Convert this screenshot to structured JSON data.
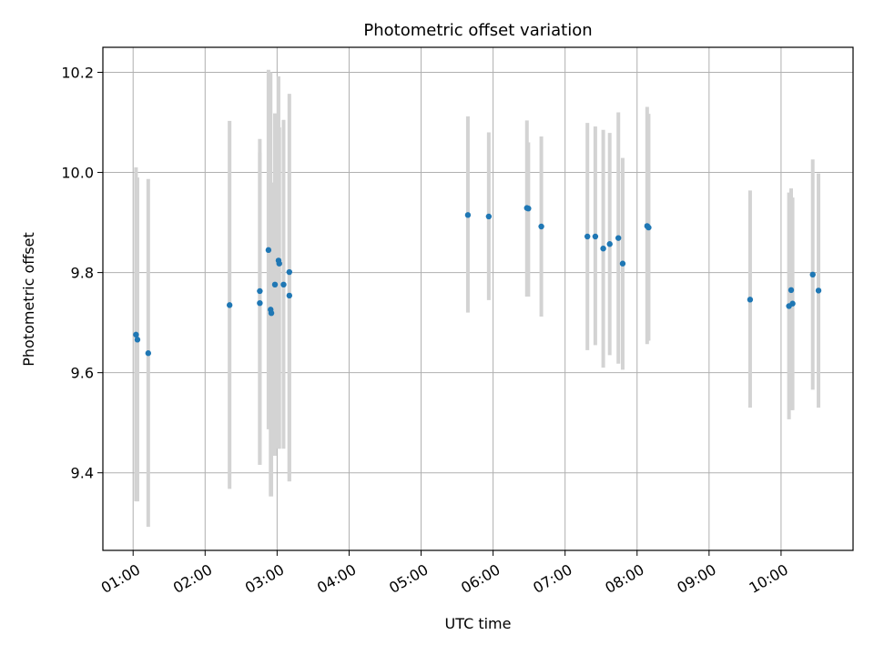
{
  "chart_data": {
    "type": "scatter",
    "title": "Photometric offset variation",
    "xlabel": "UTC time",
    "ylabel": "Photometric offset",
    "x_unit": "hours UTC",
    "xlim": [
      0.58,
      11.0
    ],
    "ylim": [
      9.245,
      10.25
    ],
    "x_ticks": [
      {
        "value": 1,
        "label": "01:00"
      },
      {
        "value": 2,
        "label": "02:00"
      },
      {
        "value": 3,
        "label": "03:00"
      },
      {
        "value": 4,
        "label": "04:00"
      },
      {
        "value": 5,
        "label": "05:00"
      },
      {
        "value": 6,
        "label": "06:00"
      },
      {
        "value": 7,
        "label": "07:00"
      },
      {
        "value": 8,
        "label": "08:00"
      },
      {
        "value": 9,
        "label": "09:00"
      },
      {
        "value": 10,
        "label": "10:00"
      }
    ],
    "y_ticks": [
      {
        "value": 9.4,
        "label": "9.4"
      },
      {
        "value": 9.6,
        "label": "9.6"
      },
      {
        "value": 9.8,
        "label": "9.8"
      },
      {
        "value": 10.0,
        "label": "10.0"
      },
      {
        "value": 10.2,
        "label": "10.2"
      }
    ],
    "grid": true,
    "marker_color": "#1f77b4",
    "errorbar_color": "#d3d3d3",
    "points": [
      {
        "x": 1.04,
        "y": 9.676,
        "low": 9.343,
        "high": 10.01
      },
      {
        "x": 1.06,
        "y": 9.666,
        "low": 9.343,
        "high": 9.99
      },
      {
        "x": 1.21,
        "y": 9.639,
        "low": 9.292,
        "high": 9.987
      },
      {
        "x": 2.34,
        "y": 9.735,
        "low": 9.368,
        "high": 10.103
      },
      {
        "x": 2.76,
        "y": 9.763,
        "low": 9.416,
        "high": 10.067
      },
      {
        "x": 2.76,
        "y": 9.739,
        "low": 9.416,
        "high": 10.04
      },
      {
        "x": 2.88,
        "y": 9.845,
        "low": 9.487,
        "high": 10.205
      },
      {
        "x": 2.91,
        "y": 9.726,
        "low": 9.353,
        "high": 10.2
      },
      {
        "x": 2.92,
        "y": 9.719,
        "low": 9.353,
        "high": 9.98
      },
      {
        "x": 2.97,
        "y": 9.776,
        "low": 9.434,
        "high": 10.118
      },
      {
        "x": 3.02,
        "y": 9.824,
        "low": 9.448,
        "high": 10.192
      },
      {
        "x": 3.03,
        "y": 9.818,
        "low": 9.448,
        "high": 10.09
      },
      {
        "x": 3.09,
        "y": 9.776,
        "low": 9.448,
        "high": 10.105
      },
      {
        "x": 3.17,
        "y": 9.801,
        "low": 9.383,
        "high": 10.157
      },
      {
        "x": 3.17,
        "y": 9.754,
        "low": 9.383,
        "high": 10.0
      },
      {
        "x": 5.65,
        "y": 9.915,
        "low": 9.72,
        "high": 10.112
      },
      {
        "x": 5.94,
        "y": 9.912,
        "low": 9.745,
        "high": 10.08
      },
      {
        "x": 6.47,
        "y": 9.929,
        "low": 9.752,
        "high": 10.104
      },
      {
        "x": 6.49,
        "y": 9.928,
        "low": 9.752,
        "high": 10.06
      },
      {
        "x": 6.67,
        "y": 9.892,
        "low": 9.712,
        "high": 10.072
      },
      {
        "x": 7.31,
        "y": 9.872,
        "low": 9.645,
        "high": 10.099
      },
      {
        "x": 7.42,
        "y": 9.872,
        "low": 9.655,
        "high": 10.092
      },
      {
        "x": 7.53,
        "y": 9.848,
        "low": 9.61,
        "high": 10.085
      },
      {
        "x": 7.62,
        "y": 9.857,
        "low": 9.635,
        "high": 10.079
      },
      {
        "x": 7.74,
        "y": 9.869,
        "low": 9.618,
        "high": 10.12
      },
      {
        "x": 7.8,
        "y": 9.818,
        "low": 9.606,
        "high": 10.029
      },
      {
        "x": 8.14,
        "y": 9.893,
        "low": 9.657,
        "high": 10.131
      },
      {
        "x": 8.16,
        "y": 9.89,
        "low": 9.664,
        "high": 10.117
      },
      {
        "x": 9.57,
        "y": 9.746,
        "low": 9.53,
        "high": 9.964
      },
      {
        "x": 10.11,
        "y": 9.733,
        "low": 9.507,
        "high": 9.96
      },
      {
        "x": 10.14,
        "y": 9.765,
        "low": 9.525,
        "high": 9.968
      },
      {
        "x": 10.16,
        "y": 9.738,
        "low": 9.525,
        "high": 9.95
      },
      {
        "x": 10.44,
        "y": 9.796,
        "low": 9.566,
        "high": 10.026
      },
      {
        "x": 10.52,
        "y": 9.764,
        "low": 9.53,
        "high": 9.998
      }
    ]
  }
}
